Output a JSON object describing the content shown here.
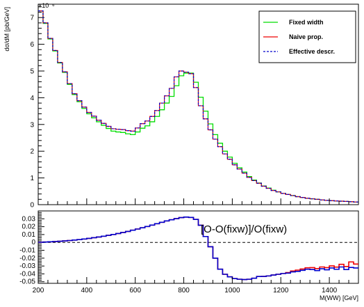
{
  "chart_data": [
    {
      "type": "line",
      "xlabel": "M(WW) [GeV]",
      "ylabel": "dσ/dM [pb/GeV]",
      "y_exponent": "×10⁻⁶",
      "xlim": [
        200,
        1520
      ],
      "ylim": [
        0,
        7.5
      ],
      "x_ticks": [
        200,
        400,
        600,
        800,
        1000,
        1200,
        1400
      ],
      "y_ticks": [
        0,
        1,
        2,
        3,
        4,
        5,
        6,
        7
      ],
      "grid": false,
      "legend_position": "top-right",
      "bin_width": 20,
      "x": [
        200,
        220,
        240,
        260,
        280,
        300,
        320,
        340,
        360,
        380,
        400,
        420,
        440,
        460,
        480,
        500,
        520,
        540,
        560,
        580,
        600,
        620,
        640,
        660,
        680,
        700,
        720,
        740,
        760,
        780,
        800,
        820,
        840,
        860,
        880,
        900,
        920,
        940,
        960,
        980,
        1000,
        1020,
        1040,
        1060,
        1080,
        1100,
        1120,
        1140,
        1160,
        1180,
        1200,
        1220,
        1240,
        1260,
        1280,
        1300,
        1320,
        1340,
        1360,
        1380,
        1400,
        1420,
        1440,
        1460,
        1480,
        1500
      ],
      "series": [
        {
          "name": "Fixed width",
          "color": "#00dd00",
          "style": "solid",
          "values": [
            7.25,
            6.78,
            6.2,
            5.75,
            5.3,
            4.95,
            4.5,
            4.12,
            3.85,
            3.6,
            3.4,
            3.25,
            3.1,
            2.97,
            2.85,
            2.75,
            2.72,
            2.7,
            2.65,
            2.62,
            2.72,
            2.86,
            2.95,
            3.1,
            3.3,
            3.55,
            3.8,
            4.05,
            4.45,
            4.82,
            4.92,
            4.92,
            4.58,
            4.02,
            3.5,
            3.02,
            2.62,
            2.3,
            2.0,
            1.78,
            1.55,
            1.38,
            1.22,
            1.05,
            0.92,
            0.81,
            0.7,
            0.62,
            0.54,
            0.48,
            0.42,
            0.38,
            0.34,
            0.3,
            0.27,
            0.24,
            0.22,
            0.2,
            0.18,
            0.16,
            0.15,
            0.14,
            0.13,
            0.12,
            0.11,
            0.1
          ]
        },
        {
          "name": "Naive prop.",
          "color": "#ee0000",
          "style": "solid",
          "values": [
            7.25,
            6.8,
            6.22,
            5.77,
            5.32,
            4.97,
            4.53,
            4.15,
            3.89,
            3.65,
            3.45,
            3.31,
            3.16,
            3.04,
            2.93,
            2.84,
            2.82,
            2.81,
            2.77,
            2.75,
            2.87,
            3.03,
            3.13,
            3.3,
            3.52,
            3.8,
            4.07,
            4.35,
            4.78,
            5.0,
            4.96,
            4.9,
            4.38,
            3.7,
            3.21,
            2.8,
            2.45,
            2.17,
            1.9,
            1.7,
            1.49,
            1.33,
            1.18,
            1.02,
            0.9,
            0.8,
            0.69,
            0.61,
            0.53,
            0.48,
            0.42,
            0.38,
            0.34,
            0.3,
            0.27,
            0.24,
            0.22,
            0.2,
            0.18,
            0.16,
            0.15,
            0.14,
            0.13,
            0.12,
            0.11,
            0.1
          ]
        },
        {
          "name": "Effective descr.",
          "color": "#0000cc",
          "style": "dashed",
          "values": [
            7.25,
            6.8,
            6.22,
            5.77,
            5.32,
            4.97,
            4.53,
            4.15,
            3.89,
            3.65,
            3.45,
            3.31,
            3.16,
            3.04,
            2.93,
            2.84,
            2.82,
            2.81,
            2.77,
            2.75,
            2.87,
            3.03,
            3.13,
            3.3,
            3.52,
            3.8,
            4.07,
            4.35,
            4.78,
            5.0,
            4.96,
            4.9,
            4.38,
            3.7,
            3.21,
            2.8,
            2.45,
            2.17,
            1.9,
            1.7,
            1.49,
            1.33,
            1.18,
            1.02,
            0.9,
            0.8,
            0.69,
            0.61,
            0.53,
            0.48,
            0.42,
            0.38,
            0.34,
            0.3,
            0.27,
            0.24,
            0.22,
            0.2,
            0.18,
            0.16,
            0.15,
            0.14,
            0.13,
            0.12,
            0.11,
            0.1
          ]
        }
      ]
    },
    {
      "type": "line",
      "title": "[O-O(fixw)]/O(fixw)",
      "xlabel": "M(WW) [GeV]",
      "xlim": [
        200,
        1520
      ],
      "ylim": [
        -0.052,
        0.04
      ],
      "x_ticks": [
        200,
        400,
        600,
        800,
        1000,
        1200,
        1400
      ],
      "y_ticks": [
        -0.05,
        -0.04,
        -0.03,
        -0.02,
        -0.01,
        0,
        0.01,
        0.02,
        0.03
      ],
      "y_tick_labels": [
        "-0.05",
        "-0.04",
        "-0.03",
        "-0.02",
        "-0.01",
        "0",
        "0.01",
        "0.02",
        "0.03"
      ],
      "reference_line": 0,
      "grid": false,
      "bin_width": 20,
      "x": [
        200,
        220,
        240,
        260,
        280,
        300,
        320,
        340,
        360,
        380,
        400,
        420,
        440,
        460,
        480,
        500,
        520,
        540,
        560,
        580,
        600,
        620,
        640,
        660,
        680,
        700,
        720,
        740,
        760,
        780,
        800,
        820,
        840,
        860,
        880,
        900,
        920,
        940,
        960,
        980,
        1000,
        1020,
        1040,
        1060,
        1080,
        1100,
        1120,
        1140,
        1160,
        1180,
        1200,
        1220,
        1240,
        1260,
        1280,
        1300,
        1320,
        1340,
        1360,
        1380,
        1400,
        1420,
        1440,
        1460,
        1480,
        1500
      ],
      "series": [
        {
          "name": "Naive prop.",
          "color": "#ee0000",
          "style": "solid",
          "values": [
            0.0002,
            0.0005,
            0.0008,
            0.0011,
            0.0015,
            0.0019,
            0.0024,
            0.003,
            0.0036,
            0.0043,
            0.0051,
            0.006,
            0.0069,
            0.0079,
            0.009,
            0.0101,
            0.0113,
            0.0126,
            0.014,
            0.0155,
            0.017,
            0.0186,
            0.0203,
            0.022,
            0.0238,
            0.0256,
            0.0273,
            0.0288,
            0.0302,
            0.0315,
            0.0322,
            0.0318,
            0.0292,
            0.0218,
            0.0075,
            -0.0055,
            -0.02,
            -0.034,
            -0.0405,
            -0.0438,
            -0.046,
            -0.0468,
            -0.0472,
            -0.0468,
            -0.0455,
            -0.0433,
            -0.0432,
            -0.0426,
            -0.0414,
            -0.0405,
            -0.0395,
            -0.0383,
            -0.0363,
            -0.0352,
            -0.0338,
            -0.0322,
            -0.032,
            -0.0333,
            -0.0312,
            -0.032,
            -0.0298,
            -0.0314,
            -0.0278,
            -0.0306,
            -0.0248,
            -0.0275
          ]
        },
        {
          "name": "Effective descr.",
          "color": "#0000cc",
          "style": "solid",
          "values": [
            0.0002,
            0.0005,
            0.0008,
            0.0011,
            0.0015,
            0.0019,
            0.0024,
            0.003,
            0.0036,
            0.0043,
            0.0051,
            0.006,
            0.0069,
            0.0079,
            0.009,
            0.0101,
            0.0113,
            0.0126,
            0.014,
            0.0155,
            0.017,
            0.0186,
            0.0203,
            0.022,
            0.0238,
            0.0256,
            0.0273,
            0.0288,
            0.0302,
            0.0315,
            0.0322,
            0.0318,
            0.0292,
            0.0218,
            0.0075,
            -0.0055,
            -0.02,
            -0.034,
            -0.0405,
            -0.0438,
            -0.046,
            -0.0468,
            -0.0472,
            -0.0468,
            -0.0455,
            -0.0433,
            -0.0432,
            -0.0426,
            -0.0414,
            -0.0405,
            -0.0395,
            -0.039,
            -0.0375,
            -0.0368,
            -0.0355,
            -0.034,
            -0.0345,
            -0.0358,
            -0.0335,
            -0.0348,
            -0.0325,
            -0.0342,
            -0.0312,
            -0.0345,
            -0.0318,
            -0.0325
          ]
        }
      ]
    }
  ]
}
